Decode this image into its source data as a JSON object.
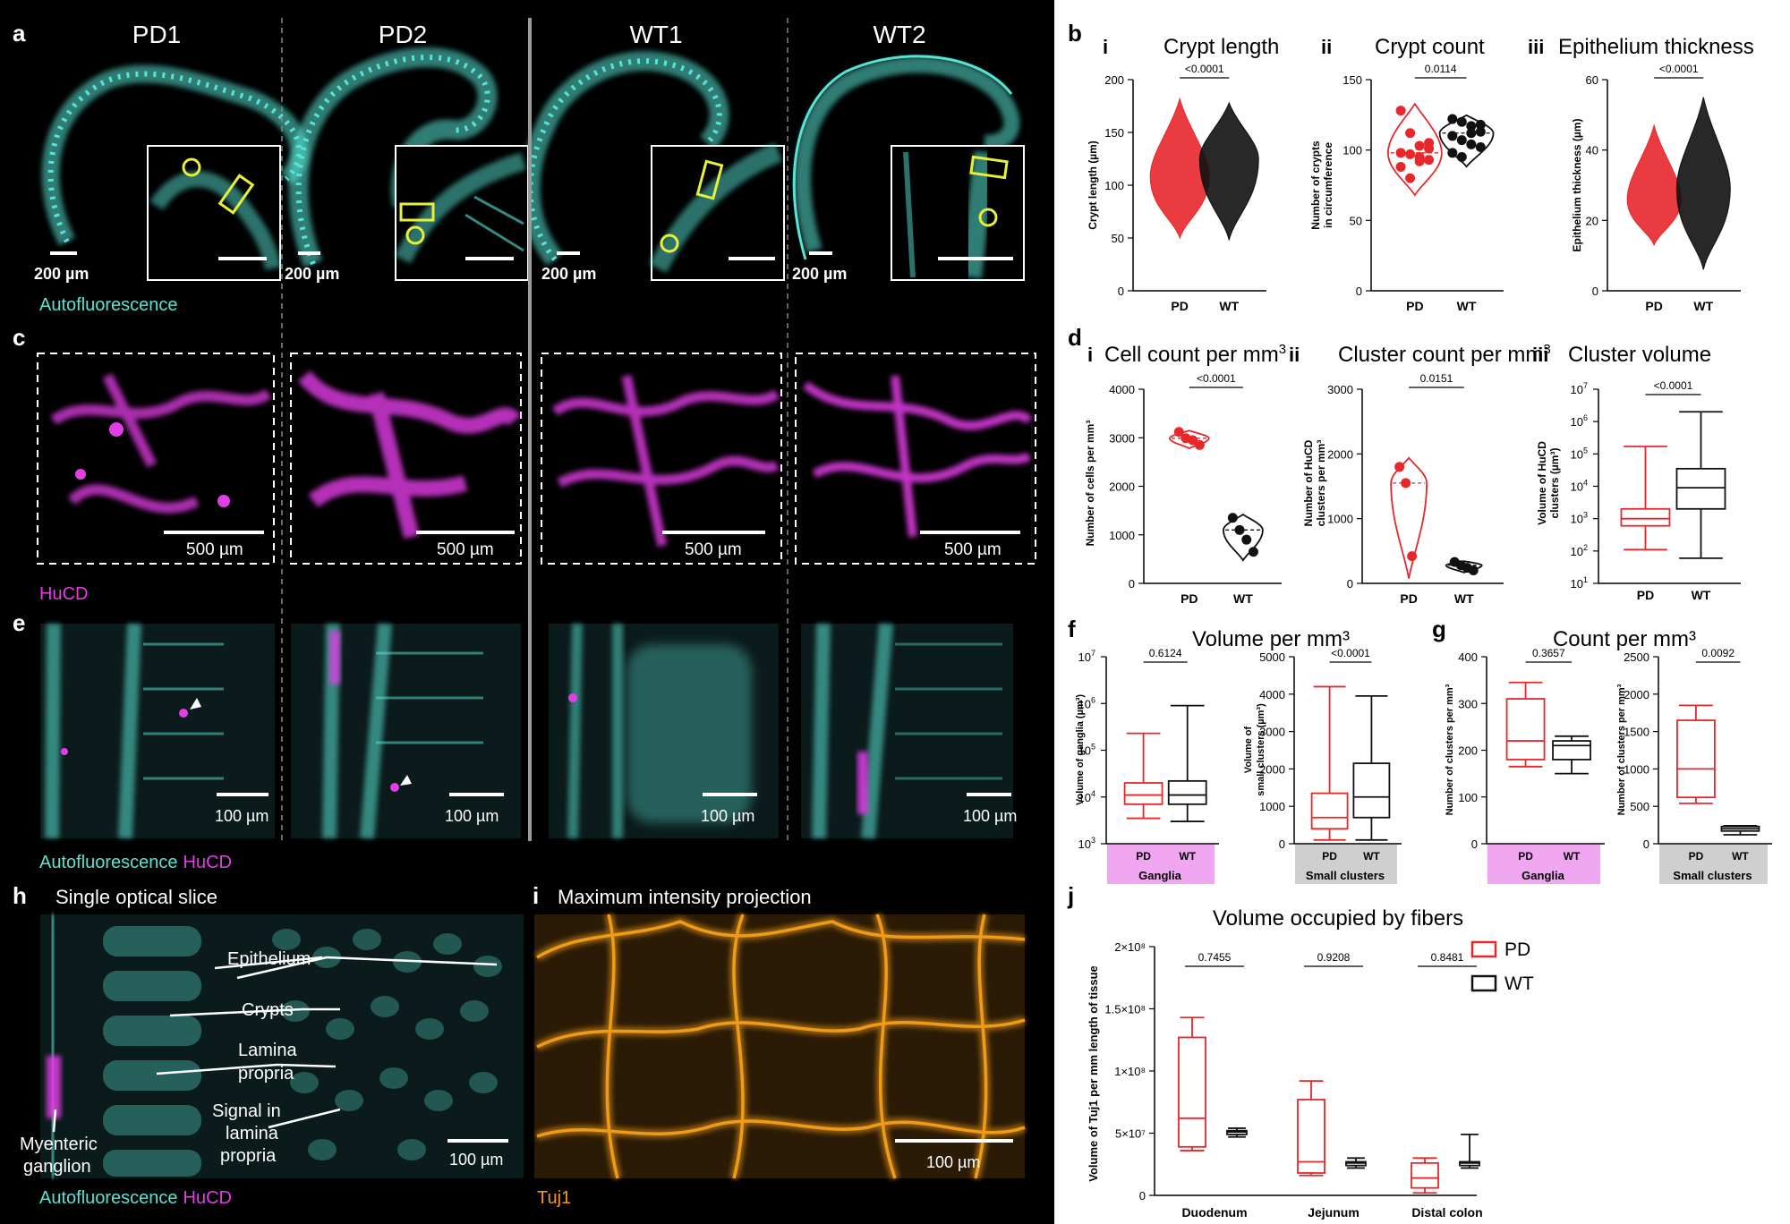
{
  "colors": {
    "pd": "#e8272b",
    "wt": "#111111",
    "cyan": "#59e3d4",
    "magenta": "#e23ee6",
    "orange": "#f09b18",
    "yellow": "#e9f03a",
    "ganglia_bg": "#f0a6f0",
    "small_bg": "#cfcfcf"
  },
  "panels": {
    "a": {
      "letter": "a",
      "samples": [
        "PD1",
        "PD2",
        "WT1",
        "WT2"
      ],
      "scalebar": "200 µm",
      "channel": "Autofluorescence"
    },
    "c": {
      "letter": "c",
      "scalebar": "500 µm",
      "channel": "HuCD"
    },
    "e": {
      "letter": "e",
      "scalebar": "100 µm",
      "channel1": "Autofluorescence",
      "channel2": "HuCD"
    },
    "h": {
      "letter": "h",
      "title": "Single optical slice",
      "labels": {
        "epithelium": "Epithelium",
        "crypts": "Crypts",
        "lamina1": "Lamina",
        "lamina2": "propria",
        "signal1": "Signal in",
        "signal2": "lamina",
        "signal3": "propria",
        "myenteric1": "Myenteric",
        "myenteric2": "ganglion"
      },
      "scalebar": "100 µm",
      "channel1": "Autofluorescence",
      "channel2": "HuCD"
    },
    "i": {
      "letter": "i",
      "title": "Maximum intensity projection",
      "scalebar": "100 µm",
      "channel": "Tuj1"
    },
    "b": {
      "letter": "b"
    },
    "d": {
      "letter": "d"
    },
    "f": {
      "letter": "f",
      "title": "Volume per mm³"
    },
    "g": {
      "letter": "g",
      "title": "Count per mm³"
    },
    "j": {
      "letter": "j"
    }
  },
  "chart_data": [
    {
      "id": "b-i",
      "type": "violin",
      "roman": "i",
      "title": "Crypt length",
      "ylabel": "Crypt length (µm)",
      "categories": [
        "PD",
        "WT"
      ],
      "ylim": [
        0,
        200
      ],
      "yticks": [
        "0",
        "50",
        "100",
        "150",
        "200"
      ],
      "pvalue": "<0.0001",
      "series": [
        {
          "name": "PD",
          "median": 108,
          "min": 50,
          "max": 182
        },
        {
          "name": "WT",
          "median": 125,
          "min": 48,
          "max": 178
        }
      ]
    },
    {
      "id": "b-ii",
      "type": "violin",
      "roman": "ii",
      "title": "Crypt count",
      "ylabel1": "Number of crypts",
      "ylabel2": "in circumference",
      "categories": [
        "PD",
        "WT"
      ],
      "ylim": [
        0,
        150
      ],
      "yticks": [
        "0",
        "50",
        "100",
        "150"
      ],
      "pvalue": "0.0114",
      "series": [
        {
          "name": "PD",
          "values": [
            128,
            112,
            103,
            101,
            98,
            97,
            95,
            93,
            88,
            80,
            92,
            105
          ]
        },
        {
          "name": "WT",
          "values": [
            122,
            120,
            117,
            113,
            110,
            107,
            104,
            102,
            98,
            95,
            112,
            118
          ]
        }
      ]
    },
    {
      "id": "b-iii",
      "type": "violin",
      "roman": "iii",
      "title": "Epithelium thickness",
      "ylabel": "Epithelium thickness (µm)",
      "categories": [
        "PD",
        "WT"
      ],
      "ylim": [
        0,
        60
      ],
      "yticks": [
        "0",
        "20",
        "40",
        "60"
      ],
      "pvalue": "<0.0001",
      "series": [
        {
          "name": "PD",
          "median": 26,
          "min": 13,
          "max": 47
        },
        {
          "name": "WT",
          "median": 29,
          "min": 6,
          "max": 55
        }
      ]
    },
    {
      "id": "d-i",
      "type": "violin",
      "roman": "i",
      "title": "Cell count per mm",
      "title_sup": "3",
      "ylabel": "Number of cells per mm³",
      "categories": [
        "PD",
        "WT"
      ],
      "ylim": [
        0,
        4000
      ],
      "yticks": [
        "0",
        "1000",
        "2000",
        "3000",
        "4000"
      ],
      "pvalue": "<0.0001",
      "series": [
        {
          "name": "PD",
          "values": [
            3120,
            2990,
            2950,
            2850
          ]
        },
        {
          "name": "WT",
          "values": [
            1350,
            1100,
            900,
            650
          ]
        }
      ]
    },
    {
      "id": "d-ii",
      "type": "violin",
      "roman": "ii",
      "title": "Cluster count per mm",
      "title_sup": "3",
      "ylabel1": "Number of HuCD",
      "ylabel2": "clusters per mm³",
      "categories": [
        "PD",
        "WT"
      ],
      "ylim": [
        0,
        3000
      ],
      "yticks": [
        "0",
        "1000",
        "2000",
        "3000"
      ],
      "pvalue": "0.0151",
      "series": [
        {
          "name": "PD",
          "values": [
            1800,
            1550,
            420
          ]
        },
        {
          "name": "WT",
          "values": [
            330,
            280,
            240,
            200
          ]
        }
      ]
    },
    {
      "id": "d-iii",
      "type": "box",
      "roman": "iii",
      "title": "Cluster volume",
      "ylabel1": "Volume of HuCD",
      "ylabel2": "clusters (µm³)",
      "categories": [
        "PD",
        "WT"
      ],
      "yscale": "log",
      "ylim": [
        10,
        10000000
      ],
      "pvalue": "<0.0001",
      "series": [
        {
          "name": "PD",
          "min": 110,
          "q1": 600,
          "median": 1000,
          "q3": 2000,
          "max": 170000
        },
        {
          "name": "WT",
          "min": 60,
          "q1": 2000,
          "median": 9000,
          "q3": 35000,
          "max": 2000000
        }
      ]
    },
    {
      "id": "f-1",
      "type": "box",
      "ylabel": "Volume of ganglia (µm³)",
      "categories": [
        "PD",
        "WT"
      ],
      "yscale": "log",
      "ylim": [
        1000,
        10000000
      ],
      "pvalue": "0.6124",
      "group": "Ganglia",
      "series": [
        {
          "name": "PD",
          "min": 3500,
          "q1": 7000,
          "median": 11000,
          "q3": 20000,
          "max": 230000
        },
        {
          "name": "WT",
          "min": 3000,
          "q1": 7000,
          "median": 11000,
          "q3": 22000,
          "max": 900000
        }
      ]
    },
    {
      "id": "f-2",
      "type": "box",
      "ylabel1": "Volume of",
      "ylabel2": "small clusters (µm³)",
      "categories": [
        "PD",
        "WT"
      ],
      "ylim": [
        0,
        5000
      ],
      "yticks": [
        "0",
        "1000",
        "2000",
        "3000",
        "4000",
        "5000"
      ],
      "pvalue": "<0.0001",
      "group": "Small clusters",
      "series": [
        {
          "name": "PD",
          "min": 100,
          "q1": 400,
          "median": 700,
          "q3": 1350,
          "max": 4200
        },
        {
          "name": "WT",
          "min": 100,
          "q1": 700,
          "median": 1250,
          "q3": 2150,
          "max": 3950
        }
      ]
    },
    {
      "id": "g-1",
      "type": "box",
      "ylabel": "Number of clusters per mm³",
      "categories": [
        "PD",
        "WT"
      ],
      "ylim": [
        0,
        400
      ],
      "yticks": [
        "0",
        "100",
        "200",
        "300",
        "400"
      ],
      "pvalue": "0.3657",
      "group": "Ganglia",
      "series": [
        {
          "name": "PD",
          "min": 165,
          "q1": 180,
          "median": 220,
          "q3": 310,
          "max": 345
        },
        {
          "name": "WT",
          "min": 150,
          "q1": 180,
          "median": 210,
          "q3": 220,
          "max": 230
        }
      ]
    },
    {
      "id": "g-2",
      "type": "box",
      "ylabel": "Number of clusters per mm³",
      "categories": [
        "PD",
        "WT"
      ],
      "ylim": [
        0,
        2500
      ],
      "yticks": [
        "0",
        "500",
        "1000",
        "1500",
        "2000",
        "2500"
      ],
      "pvalue": "0.0092",
      "group": "Small clusters",
      "series": [
        {
          "name": "PD",
          "min": 540,
          "q1": 620,
          "median": 1000,
          "q3": 1650,
          "max": 1850
        },
        {
          "name": "WT",
          "min": 120,
          "q1": 170,
          "median": 200,
          "q3": 230,
          "max": 240
        }
      ]
    },
    {
      "id": "j",
      "type": "box",
      "title": "Volume occupied by fibers",
      "ylabel": "Volume of Tuj1 per mm length of tissue",
      "categories": [
        "Duodenum",
        "Jejunum",
        "Distal colon"
      ],
      "ylim": [
        0,
        200000000
      ],
      "yticks": [
        "0",
        "5×10⁷",
        "1×10⁸",
        "1.5×10⁸",
        "2×10⁸"
      ],
      "pvalues": [
        "0.7455",
        "0.9208",
        "0.8481"
      ],
      "legend": [
        "PD",
        "WT"
      ],
      "series": [
        {
          "name": "PD",
          "boxes": [
            {
              "min": 36000000,
              "q1": 39000000,
              "median": 62000000,
              "q3": 127000000,
              "max": 143000000
            },
            {
              "min": 16000000,
              "q1": 18000000,
              "median": 27000000,
              "q3": 77000000,
              "max": 92000000
            },
            {
              "min": 2000000,
              "q1": 6000000,
              "median": 14000000,
              "q3": 26000000,
              "max": 30000000
            }
          ]
        },
        {
          "name": "WT",
          "boxes": [
            {
              "min": 47000000,
              "q1": 49000000,
              "median": 51000000,
              "q3": 52000000,
              "max": 54000000
            },
            {
              "min": 22000000,
              "q1": 24000000,
              "median": 26000000,
              "q3": 27000000,
              "max": 30000000
            },
            {
              "min": 22000000,
              "q1": 24000000,
              "median": 26000000,
              "q3": 27000000,
              "max": 49000000
            }
          ]
        }
      ]
    }
  ]
}
